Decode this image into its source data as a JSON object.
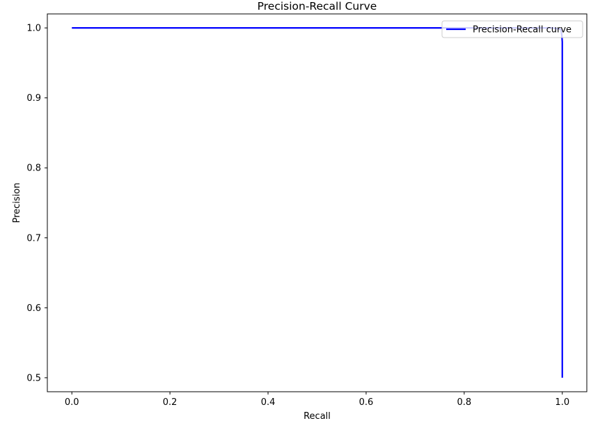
{
  "chart_data": {
    "type": "line",
    "title": "Precision-Recall Curve",
    "xlabel": "Recall",
    "ylabel": "Precision",
    "xlim": [
      -0.05,
      1.05
    ],
    "ylim": [
      0.48,
      1.02
    ],
    "xticks": [
      "0.0",
      "0.2",
      "0.4",
      "0.6",
      "0.8",
      "1.0"
    ],
    "yticks": [
      "0.5",
      "0.6",
      "0.7",
      "0.8",
      "0.9",
      "1.0"
    ],
    "grid": false,
    "legend_position": "top-right",
    "series": [
      {
        "name": "Precision-Recall curve",
        "color": "#0000ff",
        "x": [
          0.0,
          0.98,
          0.997,
          0.999,
          1.0,
          1.0
        ],
        "y": [
          1.0,
          1.0,
          0.998,
          0.99,
          0.98,
          0.5
        ]
      }
    ]
  }
}
